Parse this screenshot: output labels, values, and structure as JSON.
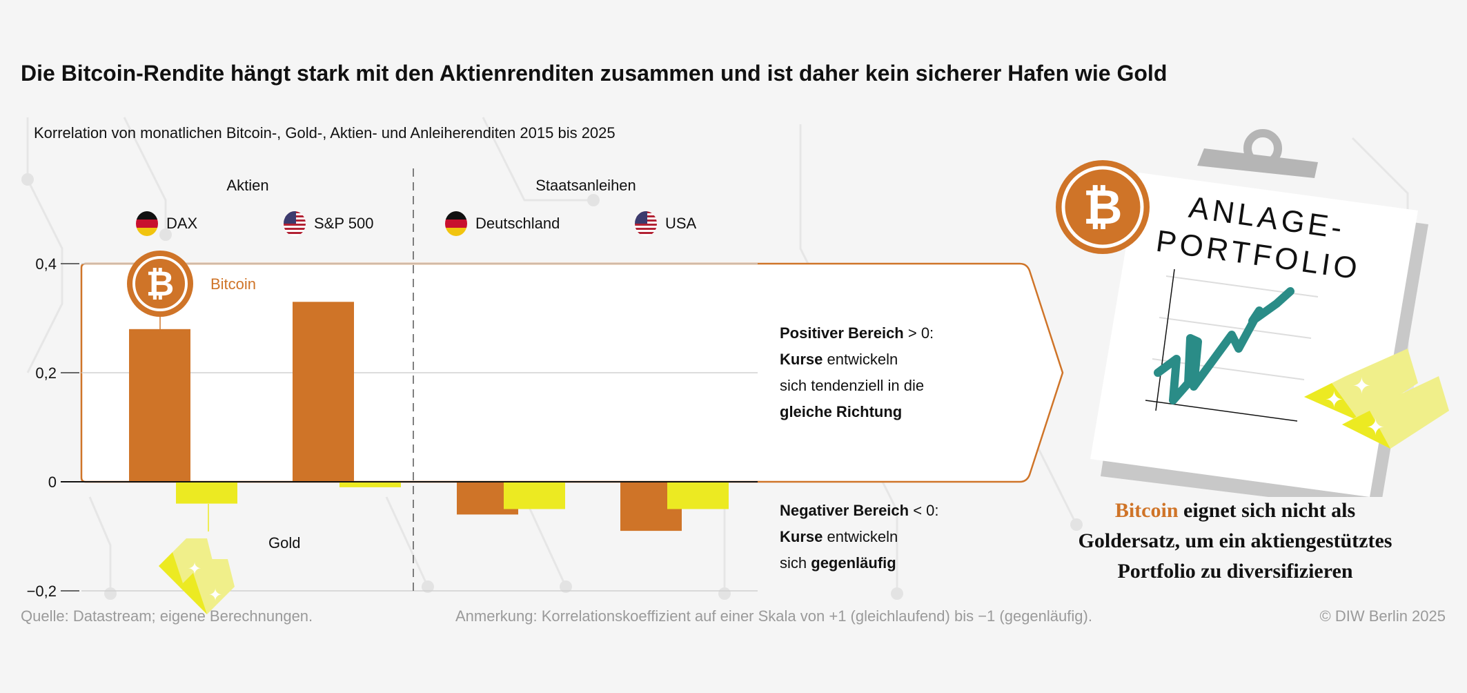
{
  "title": "Die Bitcoin-Rendite hängt stark mit den Aktienrenditen zusammen und ist daher kein sicherer Hafen wie Gold",
  "subtitle": "Korrelation von monatlichen Bitcoin-, Gold-, Aktien- und Anleiherenditen 2015 bis 2025",
  "groups": {
    "stocks": "Aktien",
    "bonds": "Staatsanleihen"
  },
  "legend": [
    {
      "label": "DAX",
      "flag": "germany-flag-icon"
    },
    {
      "label": "S&P 500",
      "flag": "usa-flag-icon"
    },
    {
      "label": "Deutschland",
      "flag": "germany-flag-icon"
    },
    {
      "label": "USA",
      "flag": "usa-flag-icon"
    }
  ],
  "series_labels": {
    "bitcoin": "Bitcoin",
    "gold": "Gold"
  },
  "explain": {
    "positive": {
      "bold1": "Positiver Bereich",
      "rest1": " > 0:",
      "bold2": "Kurse",
      "rest2": " entwickeln",
      "line3": "sich tendenziell in die",
      "bold4": "gleiche Richtung"
    },
    "negative": {
      "bold1": "Negativer Bereich",
      "rest1": " < 0:",
      "bold2": "Kurse",
      "rest2": " entwickeln",
      "line3a": "sich ",
      "bold3": "gegenläufig"
    }
  },
  "clipboard": {
    "line1": "ANLAGE-",
    "line2": "PORTFOLIO"
  },
  "conclusion": {
    "highlight": "Bitcoin",
    "line1": " eignet sich nicht als",
    "line2": "Goldersatz, um ein aktiengestütztes",
    "line3": "Portfolio zu diversifizieren"
  },
  "footer": {
    "source": "Quelle: Datastream; eigene Berechnungen.",
    "note": "Anmerkung: Korrelationskoeffizient auf einer Skala von +1 (gleichlaufend) bis −1 (gegenläufig).",
    "copyright": "© DIW Berlin 2025"
  },
  "colors": {
    "bitcoin": "#cf7428",
    "gold": "#ecea22",
    "teal": "#2a8c87"
  },
  "chart_data": {
    "type": "bar",
    "title": "Korrelation von monatlichen Bitcoin-, Gold-, Aktien- und Anleiherenditen 2015 bis 2025",
    "categories": [
      "DAX",
      "S&P 500",
      "Deutschland",
      "USA"
    ],
    "series": [
      {
        "name": "Bitcoin",
        "values": [
          0.28,
          0.33,
          -0.06,
          -0.09
        ]
      },
      {
        "name": "Gold",
        "values": [
          -0.04,
          -0.01,
          -0.05,
          -0.05
        ]
      }
    ],
    "ylim": [
      -0.2,
      0.4
    ],
    "yticks": [
      0.4,
      0.2,
      0,
      -0.2
    ],
    "ytick_labels": [
      "0,4",
      "0,2",
      "0",
      "−0,2"
    ],
    "xlabel": "",
    "ylabel": "",
    "grid": true
  }
}
